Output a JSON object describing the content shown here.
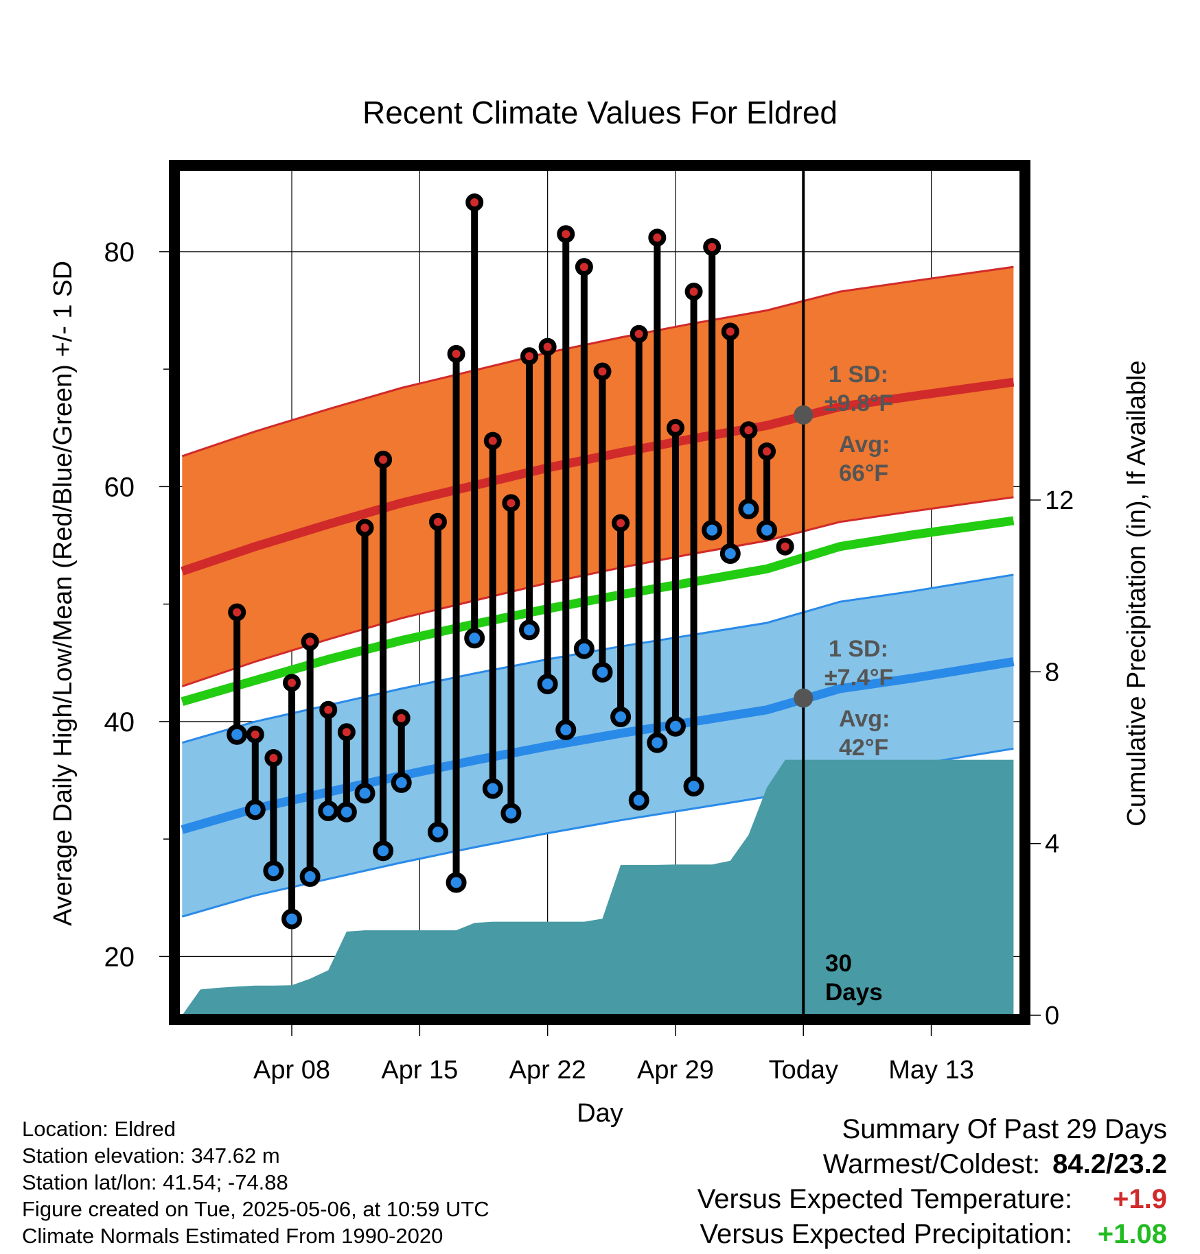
{
  "chart_data": {
    "type": "line",
    "title": "Recent Climate Values For Eldred",
    "xlabel": "Day",
    "ylabel": "Average Daily High/Low/Mean (Red/Blue/Green) +/- 1 SD",
    "y2label": "Cumulative Precipitation (in), If Available",
    "ylim": [
      15,
      87
    ],
    "y2lim": [
      0,
      19.7
    ],
    "xlim": [
      -34.2,
      11.9
    ],
    "x_unit": "days relative to today (2025-05-06)",
    "yticks": [
      20,
      40,
      60,
      80
    ],
    "y2ticks": [
      0,
      4,
      8,
      12
    ],
    "xticks": [
      {
        "x": -28,
        "label": "Apr 08"
      },
      {
        "x": -21,
        "label": "Apr 15"
      },
      {
        "x": -14,
        "label": "Apr 22"
      },
      {
        "x": -7,
        "label": "Apr 29"
      },
      {
        "x": 0,
        "label": "Today"
      },
      {
        "x": 7,
        "label": "May 13"
      }
    ],
    "grid": true,
    "today_label": [
      "30",
      "Days"
    ],
    "high_annotation": {
      "sd_label": "1 SD:",
      "sd_value": "±9.8°F",
      "avg_label": "Avg:",
      "avg_value": "66°F"
    },
    "low_annotation": {
      "sd_label": "1 SD:",
      "sd_value": "±7.4°F",
      "avg_label": "Avg:",
      "avg_value": "42°F"
    },
    "today_high_avg": 66.1,
    "today_low_avg": 42.0,
    "normals": {
      "x": [
        -34,
        -30,
        -26,
        -22,
        -18,
        -14,
        -10,
        -6,
        -2,
        2,
        6,
        11.5
      ],
      "high_avg": [
        52.8,
        54.9,
        56.8,
        58.6,
        60.1,
        61.6,
        62.9,
        64.1,
        65.2,
        66.8,
        67.7,
        68.9
      ],
      "high_sd": 9.8,
      "low_avg": [
        30.8,
        32.6,
        34.0,
        35.4,
        36.7,
        37.9,
        39.0,
        40.0,
        41.0,
        42.8,
        43.7,
        45.1
      ],
      "low_sd": 7.4,
      "mean": [
        41.7,
        43.5,
        45.3,
        46.9,
        48.3,
        49.6,
        50.8,
        51.9,
        53.0,
        54.9,
        55.9,
        57.1
      ]
    },
    "series": [
      {
        "name": "High",
        "color": "#d12a2a",
        "x": [
          -31,
          -30,
          -29,
          -28,
          -27,
          -26,
          -25,
          -24,
          -23,
          -22,
          -20,
          -19,
          -18,
          -17,
          -16,
          -15,
          -14,
          -13,
          -12,
          -11,
          -10,
          -9,
          -8,
          -7,
          -6,
          -5,
          -4,
          -3,
          -2,
          -1
        ],
        "values": [
          49.3,
          38.9,
          36.9,
          43.3,
          46.8,
          41.0,
          39.1,
          56.5,
          62.3,
          40.3,
          57.0,
          71.3,
          84.2,
          63.9,
          58.6,
          71.1,
          71.9,
          81.5,
          78.7,
          69.8,
          56.9,
          73.0,
          81.2,
          65.0,
          76.6,
          80.4,
          73.2,
          64.8,
          63.0,
          54.9
        ]
      },
      {
        "name": "Low",
        "color": "#2a8ae8",
        "x": [
          -31,
          -30,
          -29,
          -28,
          -27,
          -26,
          -25,
          -24,
          -23,
          -22,
          -20,
          -19,
          -18,
          -17,
          -16,
          -15,
          -14,
          -13,
          -12,
          -11,
          -10,
          -9,
          -8,
          -7,
          -6,
          -5,
          -4,
          -3,
          -2
        ],
        "values": [
          38.9,
          32.5,
          27.3,
          23.2,
          26.8,
          32.4,
          32.3,
          33.9,
          29.0,
          34.8,
          30.6,
          26.3,
          47.1,
          34.3,
          32.2,
          47.8,
          43.2,
          39.3,
          46.2,
          44.2,
          40.4,
          33.3,
          38.2,
          39.6,
          34.5,
          56.3,
          54.3,
          58.1,
          56.3
        ]
      }
    ],
    "precip": {
      "x": [
        -34,
        -33,
        -32,
        -31,
        -30,
        -29,
        -28,
        -27,
        -26,
        -25,
        -24,
        -23,
        -22,
        -21,
        -20,
        -19,
        -18,
        -17,
        -16,
        -15,
        -14,
        -13,
        -12,
        -11,
        -10,
        -9,
        -8,
        -7,
        -6,
        -5,
        -4,
        -3,
        -2,
        -1,
        0,
        11.5
      ],
      "values": [
        0,
        0.6,
        0.64,
        0.67,
        0.69,
        0.69,
        0.7,
        0.85,
        1.05,
        1.95,
        1.98,
        1.98,
        1.98,
        1.98,
        1.98,
        1.98,
        2.15,
        2.18,
        2.18,
        2.18,
        2.18,
        2.18,
        2.18,
        2.25,
        3.5,
        3.5,
        3.5,
        3.51,
        3.51,
        3.51,
        3.6,
        4.2,
        5.3,
        5.95,
        5.95,
        5.95
      ]
    }
  },
  "info": {
    "location": "Location: Eldred",
    "elevation": "Station elevation: 347.62 m",
    "latlon": "Station lat/lon: 41.54; -74.88",
    "created": "Figure created on Tue, 2025-05-06, at 10:59 UTC",
    "normals": "Climate Normals Estimated From 1990-2020"
  },
  "summary": {
    "title": "Summary Of Past 29 Days",
    "warmest_label": "Warmest/Coldest:",
    "warmest_value": "84.2/23.2",
    "temp_label": "Versus Expected Temperature:",
    "temp_value": "+1.9",
    "temp_color": "#d12a2a",
    "precip_label": "Versus Expected Precipitation:",
    "precip_value": "+1.08",
    "precip_color": "#22bb22"
  },
  "colors": {
    "high_band": "#f07830",
    "high_line": "#d12a2a",
    "low_band": "#85c3e8",
    "low_line": "#2a8ae8",
    "mean_line": "#22cc11",
    "precip_fill": "#489aa4",
    "annotation": "#555555"
  }
}
